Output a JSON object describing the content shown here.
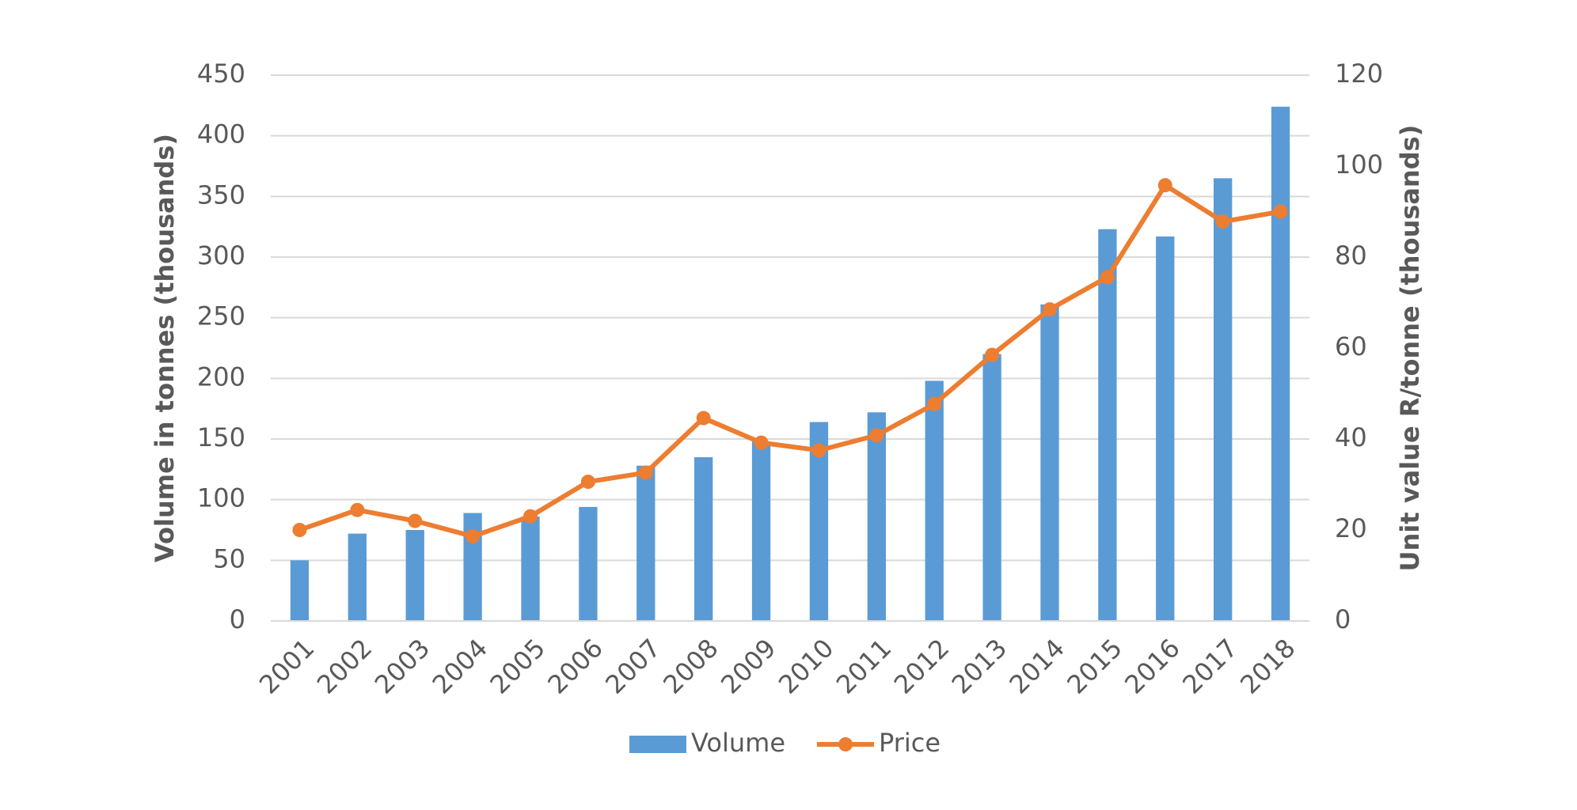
{
  "chart_data": {
    "type": "bar-line",
    "y_label": "Volume in tonnes (thousands)",
    "y2_label": "Unit value R/tonne (thousands)",
    "categories": [
      "2001",
      "2002",
      "2003",
      "2004",
      "2005",
      "2006",
      "2007",
      "2008",
      "2009",
      "2010",
      "2011",
      "2012",
      "2013",
      "2014",
      "2015",
      "2016",
      "2017",
      "2018"
    ],
    "series": [
      {
        "name": "Volume",
        "type": "bar",
        "color": "#5b9bd5",
        "values": [
          50,
          72,
          75,
          89,
          86,
          94,
          128,
          135,
          148,
          164,
          172,
          198,
          220,
          261,
          323,
          317,
          365,
          424
        ]
      },
      {
        "name": "Price",
        "type": "line",
        "axis": "y2",
        "color": "#ed7d31",
        "values": [
          20,
          24.4,
          22,
          18.6,
          23,
          30.6,
          32.6,
          44.6,
          39.2,
          37.5,
          40.8,
          47.7,
          58.5,
          68.5,
          75.6,
          95.8,
          87.8,
          90
        ]
      }
    ],
    "ylim": [
      0,
      450
    ],
    "yticks": [
      0,
      50,
      100,
      150,
      200,
      250,
      300,
      350,
      400,
      450
    ],
    "y2lim": [
      0,
      120
    ],
    "y2ticks": [
      0,
      20,
      40,
      60,
      80,
      100,
      120
    ],
    "grid": true,
    "legend": "bottom"
  }
}
